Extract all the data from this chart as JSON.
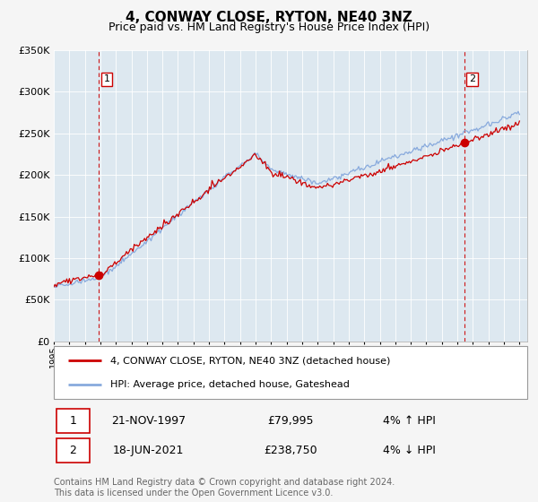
{
  "title": "4, CONWAY CLOSE, RYTON, NE40 3NZ",
  "subtitle": "Price paid vs. HM Land Registry's House Price Index (HPI)",
  "legend_text_1": "4, CONWAY CLOSE, RYTON, NE40 3NZ (detached house)",
  "legend_text_2": "HPI: Average price, detached house, Gateshead",
  "sale1_label": "1",
  "sale1_date": "21-NOV-1997",
  "sale1_price": "£79,995",
  "sale1_hpi": "4% ↑ HPI",
  "sale2_label": "2",
  "sale2_date": "18-JUN-2021",
  "sale2_price": "£238,750",
  "sale2_hpi": "4% ↓ HPI",
  "footnote1": "Contains HM Land Registry data © Crown copyright and database right 2024.",
  "footnote2": "This data is licensed under the Open Government Licence v3.0.",
  "property_color": "#cc0000",
  "hpi_color": "#88aadd",
  "background_color": "#f5f5f5",
  "plot_bg_color": "#dde8f0",
  "grid_color": "#c0ccd8",
  "vline_color": "#cc0000",
  "marker_color": "#cc0000",
  "sale1_x": 1997.9,
  "sale1_y": 79995,
  "sale2_x": 2021.46,
  "sale2_y": 238750,
  "ylim": [
    0,
    350000
  ],
  "xlim_start": 1995.0,
  "xlim_end": 2025.5,
  "ytick_values": [
    0,
    50000,
    100000,
    150000,
    200000,
    250000,
    300000,
    350000
  ],
  "ytick_labels": [
    "£0",
    "£50K",
    "£100K",
    "£150K",
    "£200K",
    "£250K",
    "£300K",
    "£350K"
  ]
}
